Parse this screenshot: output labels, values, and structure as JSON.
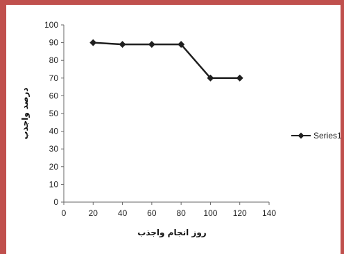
{
  "chart_data": {
    "type": "line",
    "x": [
      20,
      40,
      60,
      80,
      100,
      120
    ],
    "series": [
      {
        "name": "Series1",
        "values": [
          90,
          89,
          89,
          89,
          70,
          70
        ],
        "color": "#1f1f1f"
      }
    ],
    "xlabel": "روز انجام واجذب",
    "ylabel": "درصد واجذب",
    "xlim": [
      0,
      140
    ],
    "ylim": [
      0,
      100
    ],
    "xticks": [
      0,
      20,
      40,
      60,
      80,
      100,
      120,
      140
    ],
    "yticks": [
      0,
      10,
      20,
      30,
      40,
      50,
      60,
      70,
      80,
      90,
      100
    ],
    "grid": false,
    "legend_position": "right",
    "marker": "diamond",
    "frame_color": "#c0504d"
  }
}
